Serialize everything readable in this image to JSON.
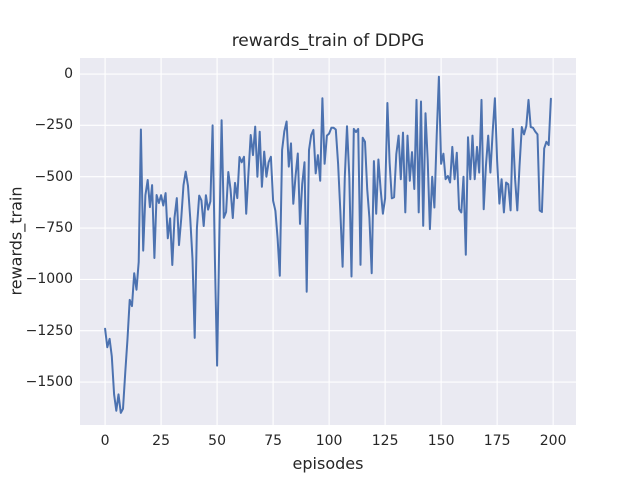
{
  "figure": {
    "title": "rewards_train of DDPG",
    "xlabel": "episodes",
    "ylabel": "rewards_train"
  },
  "chart_data": {
    "type": "line",
    "title": "rewards_train of DDPG",
    "xlabel": "episodes",
    "ylabel": "rewards_train",
    "grid": true,
    "legend_position": "none",
    "x_is_index": true,
    "x_ticks": [
      0,
      25,
      50,
      75,
      100,
      125,
      150,
      175,
      200
    ],
    "x_tick_labels": [
      "0",
      "25",
      "50",
      "75",
      "100",
      "125",
      "150",
      "175",
      "200"
    ],
    "y_ticks": [
      0,
      -250,
      -500,
      -750,
      -1000,
      -1250,
      -1500
    ],
    "y_tick_labels": [
      "0",
      "−250",
      "−500",
      "−750",
      "−1000",
      "−1250",
      "−1500"
    ],
    "xlim": [
      -11.2,
      210.2
    ],
    "ylim": [
      -1709,
      78
    ],
    "style": {
      "axes_background": "#eaeaf2",
      "grid_color": "#ffffff",
      "line_color": "#4c72b0",
      "text_color": "#262626"
    },
    "series": [
      {
        "name": "rewards_train",
        "color": "#4c72b0",
        "values": [
          -1240,
          -1330,
          -1290,
          -1375,
          -1560,
          -1640,
          -1560,
          -1650,
          -1630,
          -1450,
          -1290,
          -1100,
          -1130,
          -970,
          -1050,
          -915,
          -270,
          -860,
          -590,
          -516,
          -648,
          -541,
          -896,
          -589,
          -628,
          -590,
          -640,
          -580,
          -800,
          -703,
          -930,
          -700,
          -604,
          -833,
          -700,
          -541,
          -475,
          -545,
          -700,
          -900,
          -1285,
          -750,
          -592,
          -615,
          -740,
          -590,
          -660,
          -620,
          -250,
          -900,
          -1420,
          -800,
          -225,
          -700,
          -672,
          -477,
          -560,
          -701,
          -530,
          -604,
          -404,
          -430,
          -403,
          -680,
          -480,
          -297,
          -395,
          -256,
          -500,
          -281,
          -549,
          -378,
          -500,
          -430,
          -403,
          -617,
          -666,
          -800,
          -982,
          -370,
          -280,
          -231,
          -451,
          -338,
          -632,
          -500,
          -387,
          -730,
          -536,
          -430,
          -1060,
          -370,
          -297,
          -272,
          -484,
          -395,
          -520,
          -118,
          -437,
          -300,
          -290,
          -262,
          -262,
          -270,
          -437,
          -664,
          -938,
          -502,
          -254,
          -500,
          -986,
          -267,
          -283,
          -267,
          -929,
          -310,
          -330,
          -560,
          -700,
          -970,
          -424,
          -680,
          -416,
          -560,
          -680,
          -605,
          -141,
          -430,
          -605,
          -600,
          -390,
          -300,
          -512,
          -285,
          -674,
          -300,
          -520,
          -380,
          -560,
          -126,
          -674,
          -134,
          -739,
          -191,
          -420,
          -755,
          -500,
          -650,
          -300,
          -13,
          -437,
          -388,
          -512,
          -496,
          -528,
          -355,
          -512,
          -383,
          -658,
          -674,
          -500,
          -880,
          -308,
          -512,
          -300,
          -512,
          -355,
          -480,
          -126,
          -658,
          -450,
          -300,
          -480,
          -280,
          -118,
          -419,
          -631,
          -512,
          -674,
          -528,
          -537,
          -664,
          -267,
          -512,
          -664,
          -450,
          -258,
          -294,
          -253,
          -126,
          -258,
          -262,
          -280,
          -294,
          -664,
          -672,
          -362,
          -330,
          -346,
          -120
        ]
      }
    ]
  }
}
